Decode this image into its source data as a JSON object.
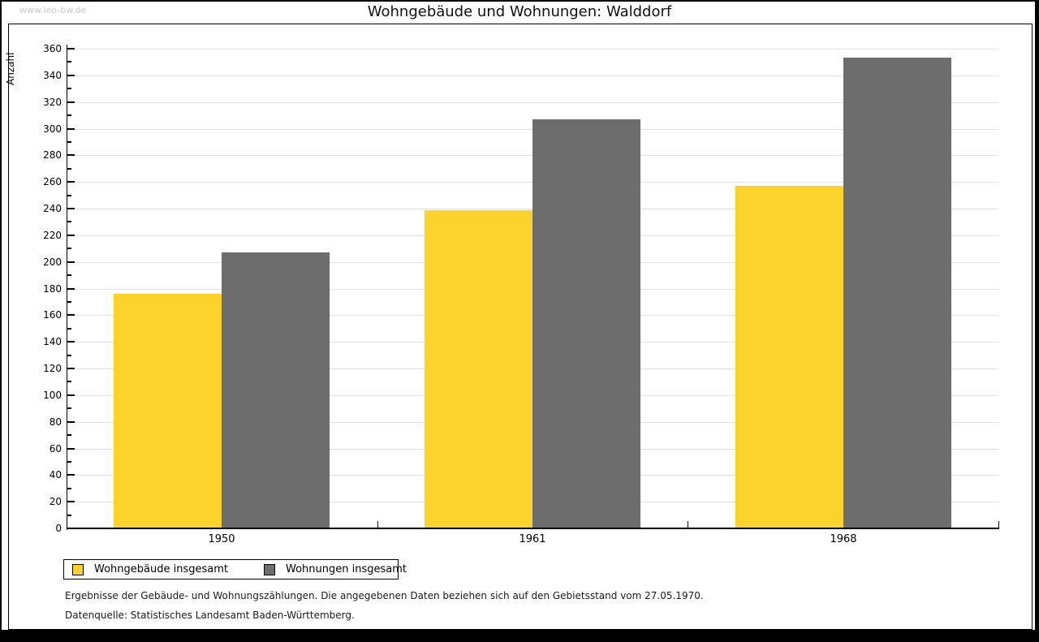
{
  "page": {
    "watermark": "www.leo-bw.de",
    "title": "Wohngebäude und Wohnungen: Walddorf"
  },
  "chart_data": {
    "type": "bar",
    "title": "Wohngebäude und Wohnungen: Walddorf",
    "xlabel": "",
    "ylabel": "Anzahl",
    "categories": [
      "1950",
      "1961",
      "1968"
    ],
    "series": [
      {
        "name": "Wohngebäude insgesamt",
        "color": "#fcd32d",
        "values": [
          176,
          239,
          257
        ]
      },
      {
        "name": "Wohnungen insgesamt",
        "color": "#6d6d6d",
        "values": [
          207,
          307,
          353
        ]
      }
    ],
    "ylim": [
      0,
      360
    ],
    "ytick_step": 20,
    "yminortick_step": 10,
    "yticks": [
      0,
      20,
      40,
      60,
      80,
      100,
      120,
      140,
      160,
      180,
      200,
      220,
      240,
      260,
      280,
      300,
      320,
      340,
      360
    ],
    "grid": true,
    "gridline_color": "#e0e0e0",
    "legend_position": "bottom-left"
  },
  "footnotes": {
    "line1": "Ergebnisse der Gebäude- und Wohnungszählungen. Die angegebenen Daten beziehen sich auf den Gebietsstand vom 27.05.1970.",
    "line2": "Datenquelle: Statistisches Landesamt Baden-Württemberg."
  }
}
